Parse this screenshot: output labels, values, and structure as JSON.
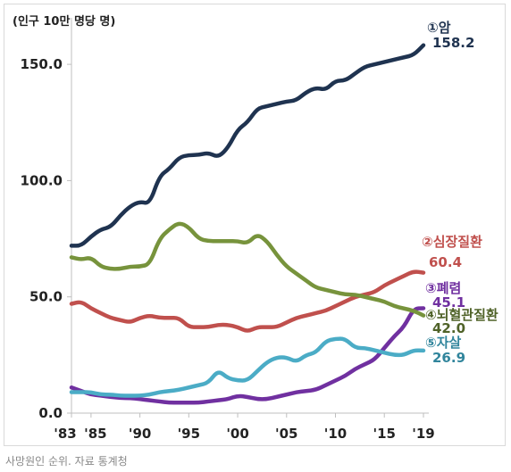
{
  "unit_label": "(인구 10만 명당 명)",
  "source": "사망원인 순위. 자료 통계청",
  "chart_data": {
    "type": "line",
    "ylim": [
      0,
      170
    ],
    "xlim": [
      1983,
      2019
    ],
    "y_ticks": [
      "0.0",
      "50.0",
      "100.0",
      "150.0"
    ],
    "x_ticks": [
      {
        "x": 1983,
        "label": "'83"
      },
      {
        "x": 1985,
        "label": "'85"
      },
      {
        "x": 1990,
        "label": "'90"
      },
      {
        "x": 1995,
        "label": "'95"
      },
      {
        "x": 2000,
        "label": "'00"
      },
      {
        "x": 2005,
        "label": "'05"
      },
      {
        "x": 2010,
        "label": "'10"
      },
      {
        "x": 2015,
        "label": "'15"
      },
      {
        "x": 2019,
        "label": "'19"
      }
    ],
    "series": [
      {
        "name": "①암",
        "final_label": "158.2",
        "color": "#1f3350",
        "label_color": "#1f3350",
        "x": [
          1983,
          1984,
          1985,
          1986,
          1987,
          1988,
          1989,
          1990,
          1991,
          1992,
          1993,
          1994,
          1995,
          1996,
          1997,
          1998,
          1999,
          2000,
          2001,
          2002,
          2003,
          2004,
          2005,
          2006,
          2007,
          2008,
          2009,
          2010,
          2011,
          2012,
          2013,
          2014,
          2015,
          2016,
          2017,
          2018,
          2019
        ],
        "values": [
          72,
          72,
          76,
          79,
          80,
          85,
          89,
          91,
          90,
          102,
          105,
          110,
          111,
          111,
          112,
          110,
          114,
          122,
          125,
          131,
          132,
          133,
          134,
          134.5,
          138,
          140,
          139,
          143,
          143,
          146,
          149,
          150,
          151,
          152,
          153,
          154,
          158.2
        ]
      },
      {
        "name": "②심장질환",
        "final_label": "60.4",
        "color": "#c0504d",
        "label_color": "#c0504d",
        "x": [
          1983,
          1984,
          1985,
          1986,
          1987,
          1988,
          1989,
          1990,
          1991,
          1992,
          1993,
          1994,
          1995,
          1996,
          1997,
          1998,
          1999,
          2000,
          2001,
          2002,
          2003,
          2004,
          2005,
          2006,
          2007,
          2008,
          2009,
          2010,
          2011,
          2012,
          2013,
          2014,
          2015,
          2016,
          2017,
          2018,
          2019
        ],
        "values": [
          47,
          48,
          45,
          43,
          41,
          40,
          39,
          41,
          42,
          41,
          41,
          41,
          37,
          37,
          37,
          38,
          38,
          37,
          35,
          37,
          37,
          37,
          39,
          41,
          42,
          43,
          44,
          46,
          48,
          50,
          51,
          52,
          55,
          57,
          59,
          61,
          60.4
        ]
      },
      {
        "name": "③폐렴",
        "final_label": "45.1",
        "color": "#7030a0",
        "label_color": "#7030a0",
        "x": [
          1983,
          1984,
          1985,
          1986,
          1987,
          1988,
          1989,
          1990,
          1991,
          1992,
          1993,
          1994,
          1995,
          1996,
          1997,
          1998,
          1999,
          2000,
          2001,
          2002,
          2003,
          2004,
          2005,
          2006,
          2007,
          2008,
          2009,
          2010,
          2011,
          2012,
          2013,
          2014,
          2015,
          2016,
          2017,
          2018,
          2019
        ],
        "values": [
          11,
          9.5,
          8,
          7.5,
          7,
          6.5,
          6.5,
          6,
          5.5,
          5,
          4.5,
          4.5,
          4.5,
          4.5,
          5,
          5.5,
          6,
          7.5,
          7,
          6,
          6,
          7,
          8,
          9,
          9.5,
          10,
          12,
          14,
          16,
          19,
          21,
          23,
          28,
          33,
          37,
          45,
          45.1
        ]
      },
      {
        "name": "④뇌혈관질환",
        "final_label": "42.0",
        "color": "#77933c",
        "label_color": "#4f6228",
        "x": [
          1983,
          1984,
          1985,
          1986,
          1987,
          1988,
          1989,
          1990,
          1991,
          1992,
          1993,
          1994,
          1995,
          1996,
          1997,
          1998,
          1999,
          2000,
          2001,
          2002,
          2003,
          2004,
          2005,
          2006,
          2007,
          2008,
          2009,
          2010,
          2011,
          2012,
          2013,
          2014,
          2015,
          2016,
          2017,
          2018,
          2019
        ],
        "values": [
          67,
          66,
          67,
          63,
          62,
          62,
          63,
          63,
          64,
          75,
          79,
          82,
          80,
          75,
          74,
          74,
          74,
          74,
          73,
          77,
          74,
          68,
          63,
          60,
          57,
          54,
          53,
          52,
          51,
          51,
          50,
          49,
          48,
          46,
          45,
          44,
          42.0
        ]
      },
      {
        "name": "⑤자살",
        "final_label": "26.9",
        "color": "#4bacc6",
        "label_color": "#31859c",
        "x": [
          1983,
          1984,
          1985,
          1986,
          1987,
          1988,
          1989,
          1990,
          1991,
          1992,
          1993,
          1994,
          1995,
          1996,
          1997,
          1998,
          1999,
          2000,
          2001,
          2002,
          2003,
          2004,
          2005,
          2006,
          2007,
          2008,
          2009,
          2010,
          2011,
          2012,
          2013,
          2014,
          2015,
          2016,
          2017,
          2018,
          2019
        ],
        "values": [
          9,
          9,
          9,
          8,
          8,
          7.5,
          7.5,
          7.5,
          8,
          9,
          9.5,
          10,
          11,
          12,
          13,
          18.5,
          15,
          14,
          14,
          18,
          22,
          24,
          24,
          22,
          25,
          26,
          31,
          32,
          32,
          28,
          28,
          27,
          26,
          25,
          25,
          27,
          26.9
        ]
      }
    ]
  }
}
